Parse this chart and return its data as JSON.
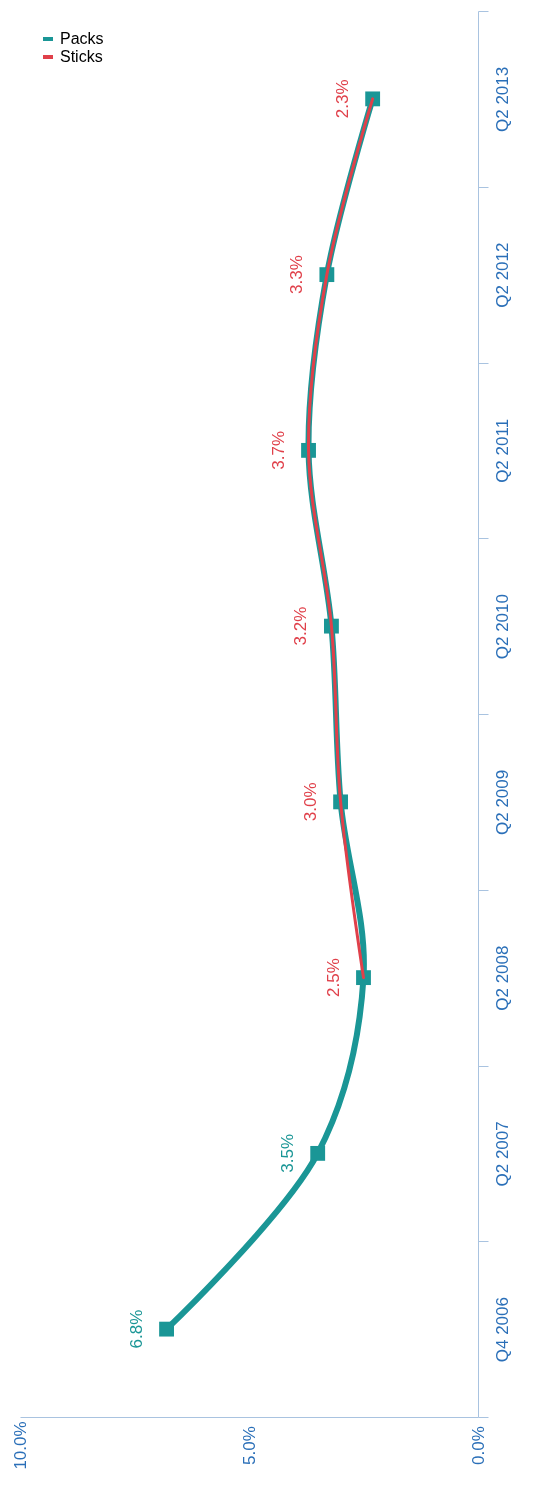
{
  "chart_data": {
    "type": "line",
    "categories": [
      "Q2 2013",
      "Q2 2012",
      "Q2 2011",
      "Q2 2010",
      "Q2 2009",
      "Q2 2008",
      "Q2 2007",
      "Q4 2006"
    ],
    "series": [
      {
        "name": "Packs",
        "color": "#1a9696",
        "marker": "square",
        "values": [
          2.3,
          3.3,
          3.7,
          3.2,
          3.0,
          2.5,
          3.5,
          6.8
        ],
        "value_labels": [
          null,
          null,
          null,
          null,
          null,
          null,
          "3.5%",
          "6.8%"
        ]
      },
      {
        "name": "Sticks",
        "color": "#e0404a",
        "marker": "none",
        "values": [
          2.3,
          3.3,
          3.7,
          3.2,
          3.0,
          2.5,
          null,
          null
        ],
        "value_labels": [
          "2.3%",
          "3.3%",
          "3.7%",
          "3.2%",
          "3.0%",
          "2.5%",
          null,
          null
        ]
      }
    ],
    "orientation": "horizontal",
    "xlim": [
      10,
      0
    ],
    "xticks": [
      {
        "value": 0,
        "label": "0.0%"
      },
      {
        "value": 5,
        "label": "5.0%"
      },
      {
        "value": 10,
        "label": "10.0%"
      }
    ],
    "grid": false,
    "legend": "top left"
  }
}
